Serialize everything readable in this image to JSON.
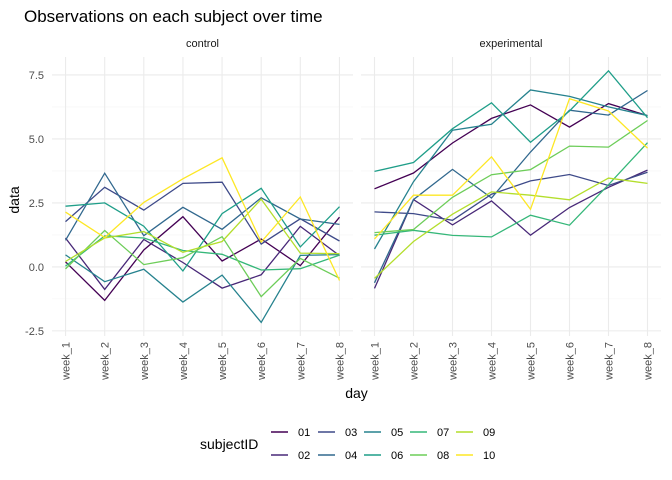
{
  "chart_data": {
    "type": "line",
    "title": "Observations on each subject over time",
    "xlabel": "day",
    "ylabel": "data",
    "ylim": [
      -2.7,
      8.2
    ],
    "y_ticks": [
      "-2.5",
      "0.0",
      "2.5",
      "5.0",
      "7.5"
    ],
    "y_tick_values": [
      -2.5,
      0,
      2.5,
      5,
      7.5
    ],
    "categories": [
      "week_1",
      "week_2",
      "week_3",
      "week_4",
      "week_5",
      "week_6",
      "week_7",
      "week_8"
    ],
    "grid": true,
    "legend": {
      "title": "subjectID",
      "placement": "bottom",
      "entries": [
        "01",
        "02",
        "03",
        "04",
        "05",
        "06",
        "07",
        "08",
        "09",
        "10"
      ]
    },
    "panels": [
      {
        "label": "control",
        "series": [
          {
            "name": "01",
            "color": "#440154",
            "values": [
              0.2,
              -1.31,
              0.66,
              1.96,
              0.23,
              1.09,
              0.05,
              1.94
            ]
          },
          {
            "name": "02",
            "color": "#482878",
            "values": [
              1.13,
              -0.88,
              1.07,
              0.17,
              -0.83,
              -0.31,
              1.58,
              0.44
            ]
          },
          {
            "name": "03",
            "color": "#3E4A89",
            "values": [
              1.77,
              3.11,
              2.22,
              3.26,
              3.31,
              0.89,
              1.88,
              1.01
            ]
          },
          {
            "name": "04",
            "color": "#31688E",
            "values": [
              1.04,
              3.66,
              1.22,
              2.33,
              1.47,
              2.7,
              1.87,
              1.66
            ]
          },
          {
            "name": "05",
            "color": "#26828E",
            "values": [
              0.47,
              -0.58,
              -0.09,
              -1.37,
              -0.32,
              -2.17,
              0.45,
              0.48
            ]
          },
          {
            "name": "06",
            "color": "#1F9E89",
            "values": [
              2.37,
              2.5,
              1.59,
              -0.16,
              2.08,
              3.07,
              0.78,
              2.35
            ]
          },
          {
            "name": "07",
            "color": "#35B779",
            "values": [
              0.03,
              1.21,
              1.13,
              0.64,
              0.49,
              -0.12,
              -0.07,
              0.46
            ]
          },
          {
            "name": "08",
            "color": "#6DCD59",
            "values": [
              -0.08,
              1.42,
              0.09,
              0.36,
              1.18,
              -1.16,
              0.33,
              -0.44
            ]
          },
          {
            "name": "09",
            "color": "#B4DE2C",
            "values": [
              0.21,
              1.13,
              1.38,
              0.57,
              0.99,
              2.65,
              0.54,
              0.52
            ]
          },
          {
            "name": "10",
            "color": "#FDE725",
            "values": [
              2.14,
              1.15,
              2.52,
              3.44,
              4.26,
              0.97,
              2.73,
              -0.53
            ]
          }
        ]
      },
      {
        "label": "experimental",
        "series": [
          {
            "name": "01",
            "color": "#440154",
            "values": [
              3.05,
              3.67,
              4.84,
              5.8,
              6.33,
              5.46,
              6.38,
              5.91
            ]
          },
          {
            "name": "02",
            "color": "#482878",
            "values": [
              -0.84,
              2.63,
              1.64,
              2.58,
              1.24,
              2.32,
              3.11,
              3.78
            ]
          },
          {
            "name": "03",
            "color": "#3E4A89",
            "values": [
              2.15,
              2.08,
              1.82,
              2.84,
              3.36,
              3.61,
              3.18,
              3.7
            ]
          },
          {
            "name": "04",
            "color": "#31688E",
            "values": [
              -0.62,
              2.63,
              3.81,
              2.69,
              4.49,
              6.12,
              5.93,
              6.89
            ]
          },
          {
            "name": "05",
            "color": "#26828E",
            "values": [
              0.7,
              3.33,
              5.34,
              5.57,
              6.91,
              6.66,
              6.25,
              5.91
            ]
          },
          {
            "name": "06",
            "color": "#1F9E89",
            "values": [
              3.73,
              4.08,
              5.4,
              6.41,
              4.87,
              6.09,
              7.66,
              5.83
            ]
          },
          {
            "name": "07",
            "color": "#35B779",
            "values": [
              1.24,
              1.43,
              1.23,
              1.17,
              2.02,
              1.63,
              3.21,
              4.85
            ]
          },
          {
            "name": "08",
            "color": "#6DCD59",
            "values": [
              1.34,
              1.46,
              2.72,
              3.6,
              3.8,
              4.72,
              4.68,
              5.72
            ]
          },
          {
            "name": "09",
            "color": "#B4DE2C",
            "values": [
              -0.45,
              0.99,
              2.06,
              2.93,
              2.8,
              2.62,
              3.47,
              3.26
            ]
          },
          {
            "name": "10",
            "color": "#FDE725",
            "values": [
              1.09,
              2.8,
              2.8,
              4.3,
              2.25,
              6.57,
              6.09,
              4.64
            ]
          }
        ]
      }
    ]
  }
}
